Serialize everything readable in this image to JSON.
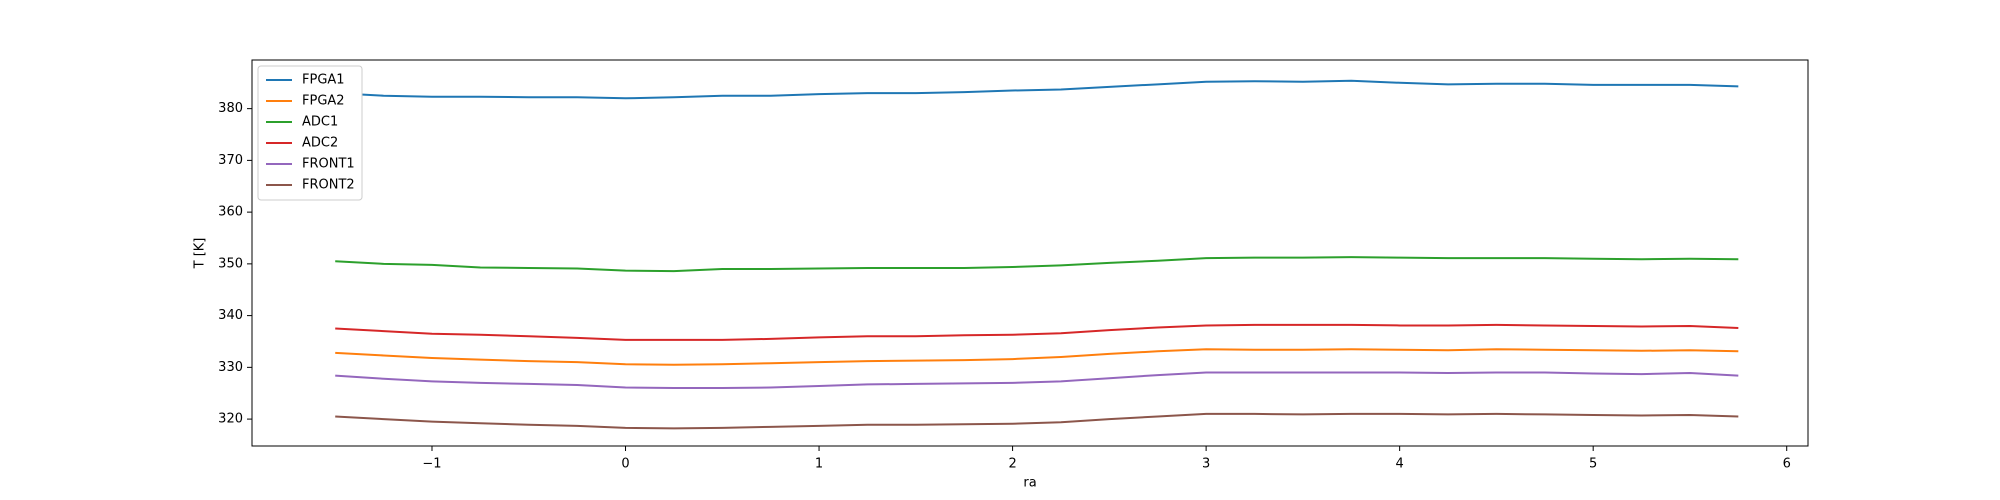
{
  "chart_data": {
    "type": "line",
    "xlabel": "ra",
    "ylabel": "T [K]",
    "x": [
      -1.5,
      -1.25,
      -1.0,
      -0.75,
      -0.5,
      -0.25,
      0,
      0.25,
      0.5,
      0.75,
      1.0,
      1.25,
      1.5,
      1.75,
      2.0,
      2.25,
      2.5,
      2.75,
      3.0,
      3.25,
      3.5,
      3.75,
      4.0,
      4.25,
      4.5,
      4.75,
      5.0,
      5.25,
      5.5,
      5.75
    ],
    "series": [
      {
        "name": "FPGA1",
        "color": "#1f77b4",
        "values": [
          383,
          382.5,
          382.3,
          382.3,
          382.2,
          382.2,
          382,
          382.2,
          382.5,
          382.5,
          382.8,
          383,
          383,
          383.2,
          383.5,
          383.7,
          384.2,
          384.7,
          385.2,
          385.3,
          385.2,
          385.4,
          385,
          384.7,
          384.8,
          384.8,
          384.6,
          384.6,
          384.6,
          384.3
        ]
      },
      {
        "name": "FPGA2",
        "color": "#ff7f0e",
        "values": [
          332.8,
          332.3,
          331.8,
          331.5,
          331.2,
          331,
          330.6,
          330.5,
          330.6,
          330.8,
          331,
          331.2,
          331.3,
          331.4,
          331.6,
          332,
          332.6,
          333.1,
          333.5,
          333.4,
          333.4,
          333.5,
          333.4,
          333.3,
          333.5,
          333.4,
          333.3,
          333.2,
          333.3,
          333.1
        ]
      },
      {
        "name": "ADC1",
        "color": "#2ca02c",
        "values": [
          350.5,
          350,
          349.8,
          349.3,
          349.2,
          349.1,
          348.7,
          348.6,
          349,
          349,
          349.1,
          349.2,
          349.2,
          349.2,
          349.4,
          349.7,
          350.2,
          350.6,
          351.1,
          351.2,
          351.2,
          351.3,
          351.2,
          351.1,
          351.1,
          351.1,
          351,
          350.9,
          351,
          350.9
        ]
      },
      {
        "name": "ADC2",
        "color": "#d62728",
        "values": [
          337.5,
          337,
          336.5,
          336.3,
          336,
          335.7,
          335.3,
          335.3,
          335.3,
          335.5,
          335.8,
          336,
          336,
          336.2,
          336.3,
          336.6,
          337.2,
          337.7,
          338.1,
          338.2,
          338.2,
          338.2,
          338.1,
          338.1,
          338.2,
          338.1,
          338,
          337.9,
          338,
          337.6
        ]
      },
      {
        "name": "FRONT1",
        "color": "#9467bd",
        "values": [
          328.4,
          327.8,
          327.3,
          327,
          326.8,
          326.6,
          326.1,
          326,
          326,
          326.1,
          326.4,
          326.7,
          326.8,
          326.9,
          327,
          327.3,
          327.9,
          328.5,
          329,
          329,
          329,
          329,
          329,
          328.9,
          329,
          329,
          328.8,
          328.7,
          328.9,
          328.4
        ]
      },
      {
        "name": "FRONT2",
        "color": "#8c564b",
        "values": [
          320.5,
          320,
          319.5,
          319.2,
          318.9,
          318.7,
          318.3,
          318.2,
          318.3,
          318.5,
          318.7,
          318.9,
          318.9,
          319,
          319.1,
          319.4,
          320,
          320.5,
          321,
          321,
          320.9,
          321,
          321,
          320.9,
          321,
          320.9,
          320.8,
          320.7,
          320.8,
          320.5
        ]
      }
    ],
    "xlim": [
      -1.93,
      6.11
    ],
    "xticks": [
      {
        "value": -1,
        "label": "−1"
      },
      0,
      1,
      2,
      3,
      4,
      5,
      6
    ],
    "ylim": [
      314.8,
      389.4
    ],
    "yticks": [
      320,
      330,
      340,
      350,
      360,
      370,
      380
    ],
    "legend": "upper left",
    "grid": false
  }
}
